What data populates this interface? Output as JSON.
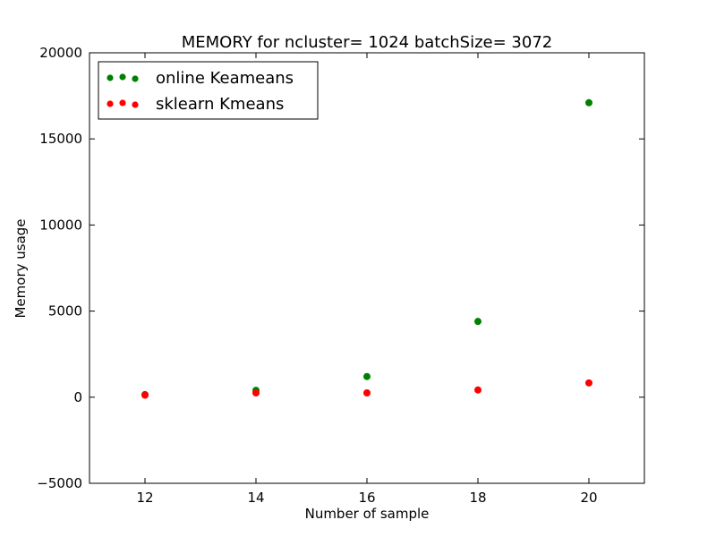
{
  "chart_data": {
    "type": "scatter",
    "title": "MEMORY for ncluster= 1024 batchSize= 3072",
    "xlabel": "Number of sample",
    "ylabel": "Memory usage",
    "xlim": [
      11,
      21
    ],
    "ylim": [
      -5000,
      20000
    ],
    "xticks": [
      12,
      14,
      16,
      18,
      20
    ],
    "yticks": [
      -5000,
      0,
      5000,
      10000,
      15000,
      20000
    ],
    "grid": false,
    "legend_position": "top-left",
    "series": [
      {
        "name": "online Keameans",
        "color": "#008000",
        "x": [
          12,
          14,
          16,
          18,
          20
        ],
        "y": [
          150,
          400,
          1200,
          4400,
          17100
        ]
      },
      {
        "name": "sklearn Kmeans",
        "color": "#ff0000",
        "x": [
          12,
          14,
          16,
          18,
          20
        ],
        "y": [
          120,
          250,
          250,
          420,
          830
        ]
      }
    ]
  }
}
